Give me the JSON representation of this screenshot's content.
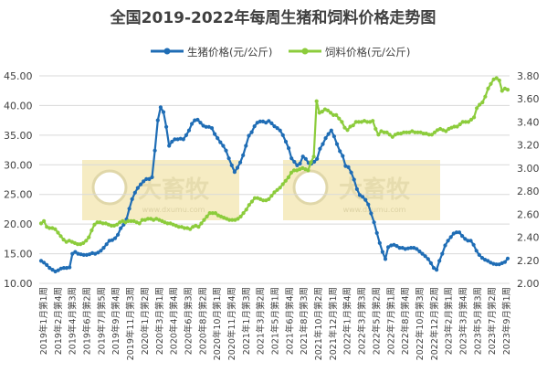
{
  "chart_data": {
    "type": "line",
    "title": "全国2019-2022年每周生猪和饲料价格走势图",
    "legend_position": "top",
    "grid": true,
    "grid_axis": "y",
    "watermark_text": "大畜牧",
    "watermark_subtext": "www.dxumu.com",
    "colors": {
      "pig": "#1f6db5",
      "feed": "#8ccc3c",
      "watermark_bg": "#f4e9b8",
      "axis_text": "#404040",
      "grid": "#d9d9d9"
    },
    "y_left": {
      "lim": [
        10,
        45
      ],
      "ticks": [
        10,
        15,
        20,
        25,
        30,
        35,
        40,
        45
      ],
      "tick_labels": [
        "10.00",
        "15.00",
        "20.00",
        "25.00",
        "30.00",
        "35.00",
        "40.00",
        "45.00"
      ]
    },
    "y_right": {
      "lim": [
        2.0,
        3.8
      ],
      "ticks": [
        2.0,
        2.2,
        2.4,
        2.6,
        2.8,
        3.0,
        3.2,
        3.4,
        3.6,
        3.8
      ],
      "tick_labels": [
        "2.00",
        "2.20",
        "2.40",
        "2.60",
        "2.80",
        "3.00",
        "3.20",
        "3.40",
        "3.60",
        "3.80"
      ]
    },
    "x_labels": [
      "2019年1月第1周",
      "2019年2月第4周",
      "2019年4月第3周",
      "2019年6月第2周",
      "2019年7月第5周",
      "2019年9月第4周",
      "2019年11月第3周",
      "2020年1月第2周",
      "2020年3月第1周",
      "2020年4月第4周",
      "2020年6月第3周",
      "2020年8月第2周",
      "2020年10月第1周",
      "2020年11月第4周",
      "2021年1月第3周",
      "2021年3月第2周",
      "2021年5月第1周",
      "2021年6月第4周",
      "2021年8月第3周",
      "2021年10月第2周",
      "2021年12月第1周",
      "2022年1月第4周",
      "2022年3月第3周",
      "2022年5月第2周",
      "2022年7月第1周",
      "2022年8月第4周",
      "2022年10月第3周",
      "2022年12月第2周",
      "2023年2月第1周",
      "2023年3月第4周",
      "2023年5月第3周",
      "2023年7月第2周",
      "2023年9月第1周"
    ],
    "series": [
      {
        "name": "生猪价格(元/公斤)",
        "axis": "left",
        "values": [
          13.8,
          13.5,
          13.1,
          12.6,
          12.3,
          12.0,
          12.2,
          12.5,
          12.6,
          12.6,
          12.7,
          15.0,
          15.3,
          15.0,
          14.9,
          14.8,
          14.8,
          14.9,
          15.1,
          15.0,
          15.2,
          15.5,
          16.0,
          16.6,
          17.2,
          17.3,
          17.6,
          18.2,
          19.3,
          19.9,
          20.8,
          22.6,
          24.2,
          25.3,
          26.1,
          26.7,
          27.2,
          27.6,
          27.6,
          27.9,
          32.4,
          37.5,
          39.7,
          38.9,
          36.4,
          33.2,
          33.9,
          34.3,
          34.3,
          34.4,
          34.3,
          35.0,
          35.8,
          36.9,
          37.5,
          37.6,
          37.1,
          36.6,
          36.4,
          36.4,
          36.2,
          35.2,
          34.5,
          33.8,
          33.2,
          32.4,
          31.1,
          29.9,
          28.8,
          29.5,
          30.4,
          31.6,
          33.2,
          34.9,
          35.5,
          36.5,
          37.1,
          37.3,
          37.3,
          37.1,
          37.4,
          37.0,
          36.5,
          36.2,
          35.8,
          35.0,
          33.9,
          32.8,
          31.1,
          30.5,
          29.9,
          30.2,
          31.4,
          31.0,
          30.3,
          30.2,
          30.5,
          31.0,
          32.7,
          33.5,
          34.5,
          35.2,
          35.8,
          34.8,
          33.5,
          32.3,
          31.5,
          29.8,
          29.6,
          28.7,
          27.5,
          25.9,
          24.9,
          24.6,
          24.1,
          23.3,
          21.8,
          20.3,
          18.5,
          16.8,
          15.3,
          14.1,
          16.1,
          16.4,
          16.5,
          16.3,
          16.0,
          16.0,
          15.8,
          15.9,
          16.0,
          16.0,
          15.8,
          15.4,
          15.0,
          14.6,
          14.1,
          13.4,
          12.6,
          12.3,
          13.8,
          15.0,
          16.4,
          17.2,
          17.8,
          18.4,
          18.6,
          18.6,
          18.0,
          17.5,
          17.2,
          17.2,
          16.5,
          15.5,
          14.8,
          14.3,
          14.0,
          13.8,
          13.5,
          13.3,
          13.2,
          13.2,
          13.4,
          13.6,
          14.2
        ]
      },
      {
        "name": "饲料价格(元/公斤)",
        "axis": "right",
        "values": [
          2.52,
          2.54,
          2.49,
          2.48,
          2.48,
          2.47,
          2.44,
          2.41,
          2.38,
          2.36,
          2.37,
          2.36,
          2.35,
          2.34,
          2.34,
          2.35,
          2.37,
          2.4,
          2.46,
          2.51,
          2.53,
          2.53,
          2.52,
          2.52,
          2.51,
          2.5,
          2.5,
          2.51,
          2.53,
          2.54,
          2.53,
          2.54,
          2.54,
          2.54,
          2.53,
          2.52,
          2.55,
          2.55,
          2.56,
          2.56,
          2.55,
          2.56,
          2.55,
          2.54,
          2.53,
          2.52,
          2.52,
          2.51,
          2.5,
          2.49,
          2.49,
          2.48,
          2.48,
          2.47,
          2.49,
          2.5,
          2.49,
          2.52,
          2.55,
          2.58,
          2.61,
          2.61,
          2.61,
          2.59,
          2.58,
          2.57,
          2.56,
          2.55,
          2.55,
          2.55,
          2.56,
          2.58,
          2.61,
          2.64,
          2.68,
          2.71,
          2.74,
          2.74,
          2.73,
          2.72,
          2.72,
          2.73,
          2.76,
          2.79,
          2.81,
          2.83,
          2.86,
          2.89,
          2.92,
          2.96,
          2.98,
          2.98,
          2.99,
          3.0,
          2.99,
          2.98,
          3.05,
          3.1,
          3.58,
          3.48,
          3.49,
          3.51,
          3.5,
          3.48,
          3.46,
          3.46,
          3.43,
          3.4,
          3.35,
          3.33,
          3.36,
          3.37,
          3.4,
          3.4,
          3.4,
          3.41,
          3.4,
          3.4,
          3.41,
          3.34,
          3.29,
          3.32,
          3.31,
          3.31,
          3.29,
          3.27,
          3.29,
          3.3,
          3.3,
          3.31,
          3.31,
          3.31,
          3.32,
          3.31,
          3.31,
          3.31,
          3.3,
          3.3,
          3.29,
          3.29,
          3.31,
          3.33,
          3.34,
          3.33,
          3.32,
          3.34,
          3.35,
          3.36,
          3.36,
          3.38,
          3.4,
          3.4,
          3.4,
          3.42,
          3.44,
          3.52,
          3.55,
          3.57,
          3.62,
          3.69,
          3.73,
          3.77,
          3.78,
          3.76,
          3.67,
          3.69,
          3.68
        ]
      }
    ]
  }
}
